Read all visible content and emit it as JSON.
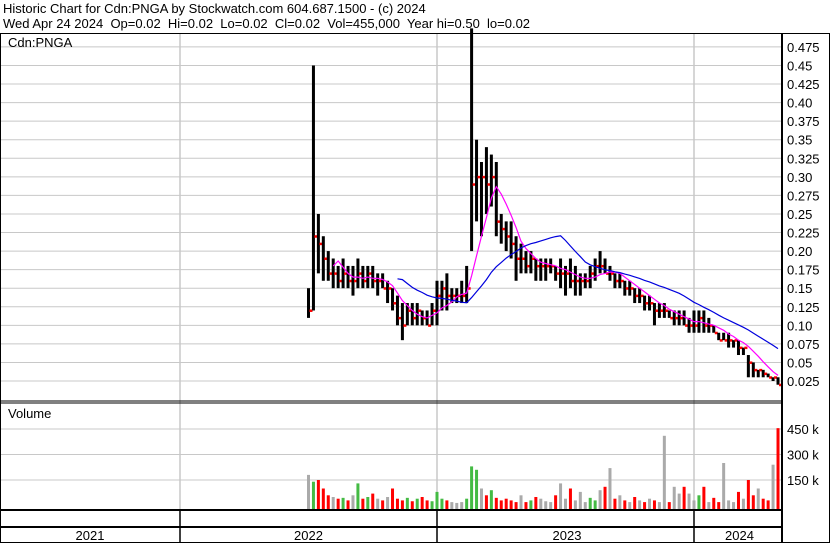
{
  "header": {
    "title": "Historic Chart for Cdn:PNGA by Stockwatch.com 604.687.1500 - (c) 2024",
    "quote": "Wed Apr 24 2024  Op=0.02  Hi=0.02  Lo=0.02  Cl=0.02  Vol=455,000  Year hi=0.50  lo=0.02"
  },
  "chart_data": [
    {
      "type": "line",
      "title": "Cdn:PNGA",
      "style": "ohlc-bars-with-moving-averages",
      "x_unit": "weekly, starting 2022.5 (year fraction)",
      "x_start": 2022.5,
      "x_ticks": [
        "2021",
        "2022",
        "2023",
        "2024"
      ],
      "ylim": [
        0.0,
        0.5
      ],
      "y_ticks": [
        "0.025",
        "0.05",
        "0.075",
        "0.10",
        "0.125",
        "0.15",
        "0.175",
        "0.20",
        "0.225",
        "0.25",
        "0.275",
        "0.30",
        "0.325",
        "0.35",
        "0.375",
        "0.40",
        "0.425",
        "0.45",
        "0.475"
      ],
      "grid": true,
      "colors": {
        "bar": "#000000",
        "close": "#ff0000",
        "ma_short": "#ff00ff",
        "ma_long": "#0000dd",
        "grid": "#c8c8c8"
      },
      "moving_average_periods_weeks": [
        6,
        19
      ],
      "high": [
        0.15,
        0.45,
        0.25,
        0.22,
        0.2,
        0.19,
        0.18,
        0.19,
        0.18,
        0.18,
        0.19,
        0.18,
        0.18,
        0.18,
        0.17,
        0.17,
        0.16,
        0.15,
        0.14,
        0.13,
        0.13,
        0.13,
        0.13,
        0.12,
        0.12,
        0.13,
        0.16,
        0.16,
        0.17,
        0.15,
        0.15,
        0.16,
        0.18,
        0.5,
        0.35,
        0.32,
        0.34,
        0.33,
        0.32,
        0.25,
        0.24,
        0.24,
        0.22,
        0.21,
        0.2,
        0.2,
        0.19,
        0.19,
        0.19,
        0.19,
        0.18,
        0.19,
        0.18,
        0.19,
        0.18,
        0.17,
        0.17,
        0.18,
        0.19,
        0.2,
        0.19,
        0.18,
        0.17,
        0.17,
        0.16,
        0.16,
        0.15,
        0.15,
        0.14,
        0.14,
        0.13,
        0.13,
        0.13,
        0.12,
        0.12,
        0.12,
        0.12,
        0.11,
        0.12,
        0.12,
        0.12,
        0.11,
        0.1,
        0.09,
        0.09,
        0.09,
        0.08,
        0.08,
        0.07,
        0.06,
        0.05,
        0.04,
        0.04,
        0.035,
        0.03,
        0.03
      ],
      "low": [
        0.11,
        0.12,
        0.17,
        0.16,
        0.16,
        0.15,
        0.15,
        0.15,
        0.15,
        0.14,
        0.15,
        0.15,
        0.15,
        0.15,
        0.14,
        0.15,
        0.13,
        0.12,
        0.1,
        0.08,
        0.1,
        0.1,
        0.1,
        0.1,
        0.1,
        0.1,
        0.1,
        0.12,
        0.12,
        0.13,
        0.13,
        0.13,
        0.13,
        0.2,
        0.24,
        0.22,
        0.25,
        0.26,
        0.22,
        0.21,
        0.2,
        0.19,
        0.16,
        0.17,
        0.17,
        0.17,
        0.16,
        0.16,
        0.16,
        0.17,
        0.16,
        0.15,
        0.14,
        0.15,
        0.14,
        0.14,
        0.15,
        0.15,
        0.16,
        0.17,
        0.17,
        0.16,
        0.15,
        0.15,
        0.14,
        0.14,
        0.13,
        0.13,
        0.12,
        0.12,
        0.1,
        0.11,
        0.11,
        0.11,
        0.1,
        0.1,
        0.1,
        0.09,
        0.09,
        0.09,
        0.09,
        0.09,
        0.09,
        0.08,
        0.08,
        0.07,
        0.07,
        0.06,
        0.06,
        0.03,
        0.03,
        0.03,
        0.03,
        0.03,
        0.025,
        0.02
      ],
      "close": [
        0.12,
        0.22,
        0.21,
        0.19,
        0.17,
        0.17,
        0.16,
        0.17,
        0.16,
        0.16,
        0.17,
        0.16,
        0.17,
        0.16,
        0.16,
        0.15,
        0.15,
        0.13,
        0.11,
        0.1,
        0.12,
        0.11,
        0.12,
        0.11,
        0.1,
        0.12,
        0.14,
        0.15,
        0.14,
        0.14,
        0.14,
        0.14,
        0.15,
        0.29,
        0.3,
        0.3,
        0.29,
        0.3,
        0.24,
        0.23,
        0.22,
        0.21,
        0.19,
        0.19,
        0.18,
        0.19,
        0.18,
        0.18,
        0.18,
        0.18,
        0.17,
        0.17,
        0.17,
        0.16,
        0.16,
        0.16,
        0.16,
        0.17,
        0.18,
        0.18,
        0.17,
        0.17,
        0.16,
        0.16,
        0.15,
        0.15,
        0.14,
        0.14,
        0.13,
        0.13,
        0.12,
        0.12,
        0.12,
        0.11,
        0.11,
        0.11,
        0.1,
        0.1,
        0.1,
        0.11,
        0.1,
        0.1,
        0.09,
        0.08,
        0.08,
        0.08,
        0.08,
        0.07,
        0.07,
        0.05,
        0.04,
        0.04,
        0.035,
        0.03,
        0.03,
        0.02
      ]
    },
    {
      "type": "bar",
      "title": "Volume",
      "ylim": [
        0,
        500000
      ],
      "y_ticks": [
        "150 k",
        "300 k",
        "450 k"
      ],
      "colors": {
        "up": "#44bb44",
        "down": "#ff0000",
        "unchanged": "#aaaaaa"
      },
      "values_k": [
        180,
        140,
        150,
        100,
        60,
        50,
        40,
        45,
        30,
        60,
        130,
        40,
        50,
        70,
        40,
        30,
        50,
        100,
        40,
        30,
        45,
        25,
        40,
        50,
        30,
        25,
        80,
        40,
        30,
        20,
        15,
        20,
        40,
        230,
        210,
        100,
        60,
        90,
        45,
        30,
        40,
        30,
        20,
        60,
        20,
        30,
        50,
        40,
        25,
        20,
        60,
        130,
        40,
        100,
        30,
        80,
        20,
        45,
        30,
        90,
        110,
        220,
        40,
        60,
        30,
        20,
        50,
        30,
        20,
        40,
        30,
        20,
        410,
        20,
        110,
        70,
        110,
        70,
        30,
        60,
        110,
        20,
        45,
        20,
        250,
        30,
        20,
        80,
        40,
        150,
        60,
        100,
        40,
        30,
        240,
        455
      ]
    }
  ]
}
